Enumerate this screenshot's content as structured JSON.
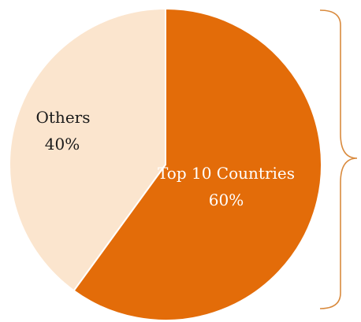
{
  "chart_data": {
    "type": "pie",
    "title": "",
    "slices": [
      {
        "label": "Top 10 Countries",
        "value": 60,
        "value_label": "60%",
        "color": "#E36C09",
        "text_color": "#FFFFFF"
      },
      {
        "label": "Others",
        "value": 40,
        "value_label": "40%",
        "color": "#FBE5CE",
        "text_color": "#1A1A1A"
      }
    ],
    "annotation": "right-side curly brace spanning the full chart height"
  }
}
